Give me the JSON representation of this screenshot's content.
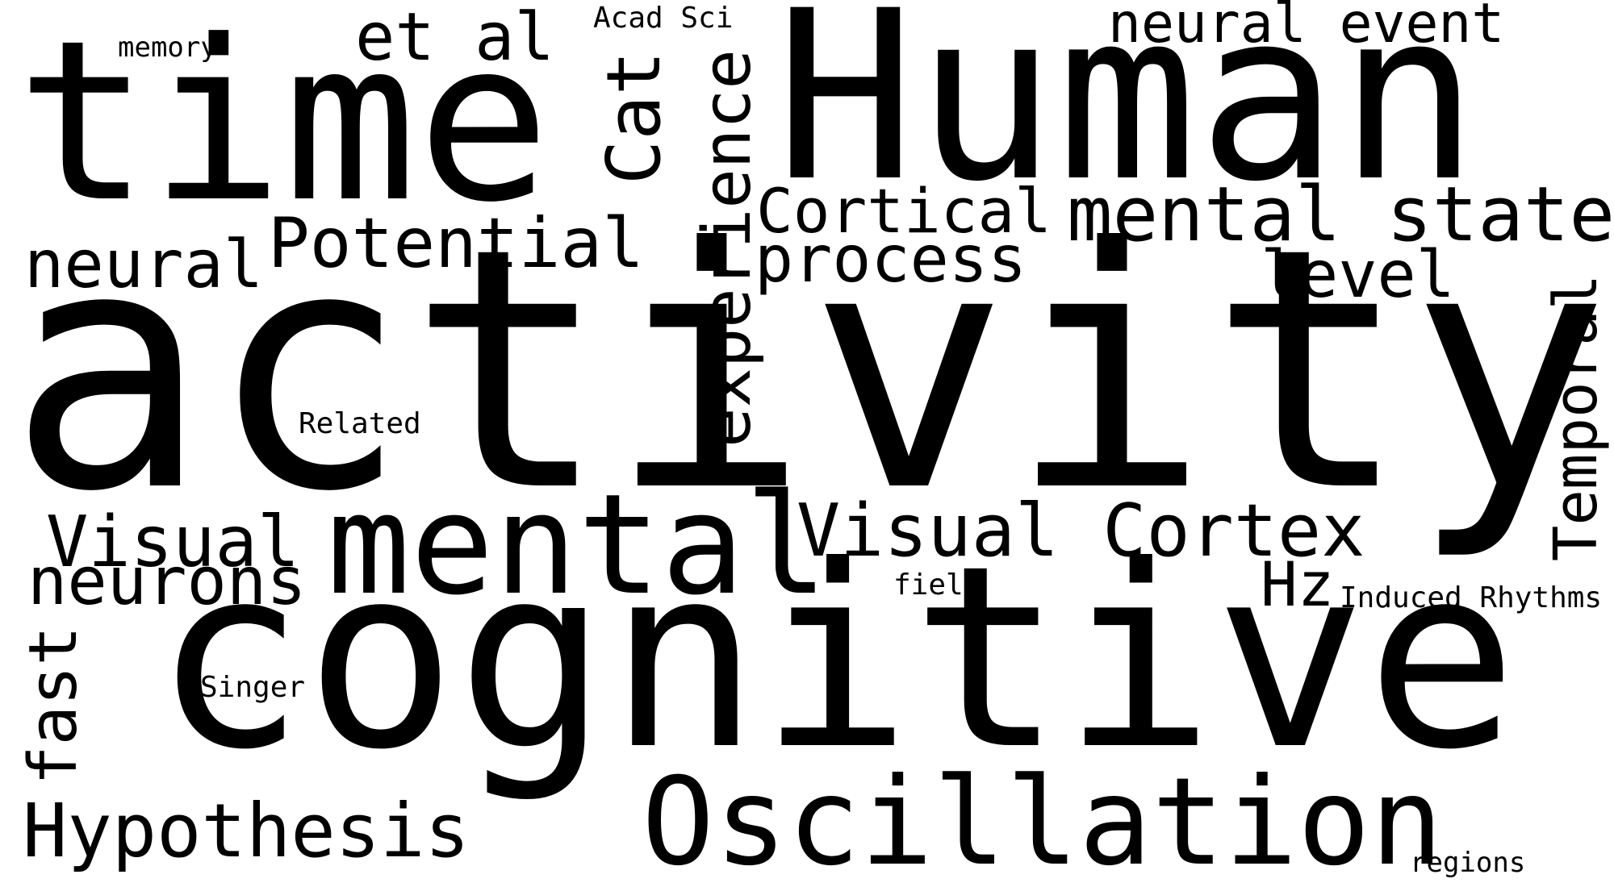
{
  "words": {
    "activity": "activity",
    "cognitive": "cognitive",
    "human": "Human",
    "time": "time",
    "mental": "mental",
    "oscillation": "Oscillation",
    "mental_state": "mental state",
    "visual_cortex": "Visual Cortex",
    "hypothesis": "Hypothesis",
    "neurons": "neurons",
    "visual": "Visual",
    "potential": "Potential",
    "neural": "neural",
    "cortical": "Cortical",
    "process": "process",
    "level": "level",
    "neural_event": "neural event",
    "et_al": "et al",
    "hz": "Hz",
    "cat": "Cat",
    "experience": "experience",
    "temporal": "Temporal",
    "fast": "fast",
    "acad_sci": "Acad Sci",
    "memory": "memory",
    "related": "Related",
    "field": "field",
    "induced_rhythms": "Induced Rhythms",
    "singer": "Singer",
    "regions": "regions"
  },
  "colors": {
    "background": "#ffffff",
    "text": "#000000"
  }
}
